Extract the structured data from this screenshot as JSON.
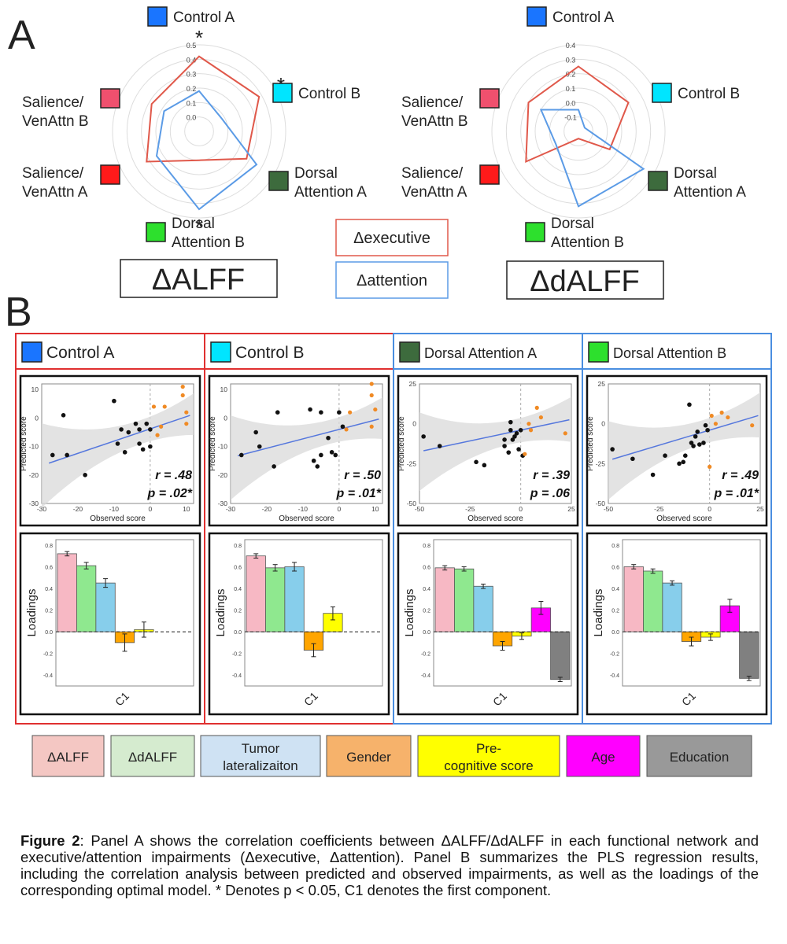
{
  "panel_labels": {
    "a": "A",
    "b": "B"
  },
  "radar_legend": {
    "executive": "Δexecutive",
    "attention": "Δattention"
  },
  "radar_titles": [
    "ΔALFF",
    "ΔdALFF"
  ],
  "network_labels": {
    "control_a": "Control A",
    "control_b": "Control B",
    "dorsal_a": [
      "Dorsal",
      "Attention A"
    ],
    "dorsal_b": [
      "Dorsal",
      "Attention B"
    ],
    "salience_a": [
      "Salience/",
      "VenAttn A"
    ],
    "salience_b": [
      "Salience/",
      "VenAttn B"
    ]
  },
  "colors": {
    "control_a": "#1a75ff",
    "control_b": "#00e5ff",
    "dorsal_a": "#3d6b3d",
    "dorsal_b": "#2de02d",
    "salience_a": "#ff1a1a",
    "salience_b": "#f0506e",
    "executive": "#e0584a",
    "attention": "#5b9be6",
    "red_frame": "#e03030",
    "blue_frame": "#4a8ee0"
  },
  "sig_marker": "*",
  "scatter_text": {
    "xlabel": "Observed score",
    "ylabel": "Predicted score"
  },
  "bar_text": {
    "ylabel": "Loadings",
    "component": "C1"
  },
  "bar_legend": [
    {
      "label": "ΔALFF",
      "color": "#f4c7c3"
    },
    {
      "label": "ΔdALFF",
      "color": "#d5ebcf"
    },
    {
      "label": "Tumor\nlateralizaiton",
      "color": "#cfe2f3"
    },
    {
      "label": "Gender",
      "color": "#f6b26b"
    },
    {
      "label": "Pre-\ncognitive score",
      "color": "#ffff00"
    },
    {
      "label": "Age",
      "color": "#ff00ff"
    },
    {
      "label": "Education",
      "color": "#999999"
    }
  ],
  "caption": {
    "bold": "Figure 2",
    "text": ": Panel A shows the correlation coefficients between ΔALFF/ΔdALFF in each functional network and executive/attention impairments (Δexecutive, Δattention). Panel B summarizes the PLS regression results, including the correlation analysis between predicted and observed impairments, as well as the loadings of the corresponding optimal model. * Denotes p < 0.05, C1 denotes the first component."
  },
  "chart_data": [
    {
      "type": "radar",
      "title": "ΔALFF",
      "axes": [
        "Control A",
        "Control B",
        "Dorsal Attention A",
        "Dorsal Attention B",
        "Salience/VenAttn A",
        "Salience/VenAttn B"
      ],
      "rlim": [
        -0.1,
        0.5
      ],
      "ticks": [
        "0.0",
        "0.1",
        "0.2",
        "0.3",
        "0.4",
        "0.5"
      ],
      "significant": [
        true,
        true,
        true,
        true,
        false,
        false
      ],
      "series": [
        {
          "name": "Δexecutive",
          "values": [
            0.42,
            0.38,
            0.28,
            0.1,
            0.32,
            0.28
          ]
        },
        {
          "name": "Δattention",
          "values": [
            0.18,
            0.08,
            0.36,
            0.44,
            0.24,
            0.18
          ]
        }
      ]
    },
    {
      "type": "radar",
      "title": "ΔdALFF",
      "axes": [
        "Control A",
        "Control B",
        "Dorsal Attention A",
        "Dorsal Attention B",
        "Salience/VenAttn A",
        "Salience/VenAttn B"
      ],
      "rlim": [
        -0.2,
        0.4
      ],
      "ticks": [
        "-0.1",
        "0.0",
        "0.1",
        "0.2",
        "0.3",
        "0.4"
      ],
      "significant": [
        false,
        false,
        false,
        false,
        false,
        false
      ],
      "series": [
        {
          "name": "Δexecutive",
          "values": [
            0.25,
            0.2,
            0.05,
            -0.15,
            0.22,
            0.2
          ]
        },
        {
          "name": "Δattention",
          "values": [
            -0.05,
            -0.15,
            0.32,
            0.32,
            -0.02,
            0.1
          ]
        }
      ]
    },
    {
      "type": "scatter",
      "network": "Control A",
      "xlim": [
        -30,
        12
      ],
      "ylim": [
        -30,
        12
      ],
      "xticks": [
        -30,
        -20,
        -10,
        0,
        10
      ],
      "yticks": [
        10,
        0,
        -10,
        -20,
        -30
      ],
      "points": [
        [
          -27,
          -13
        ],
        [
          -24,
          1
        ],
        [
          -23,
          -13
        ],
        [
          -18,
          -20
        ],
        [
          -10,
          6
        ],
        [
          -9,
          -9
        ],
        [
          -8,
          -4
        ],
        [
          -7,
          -12
        ],
        [
          -6,
          -5
        ],
        [
          -4,
          -2
        ],
        [
          -3,
          -9
        ],
        [
          -3,
          -4
        ],
        [
          -2,
          -11
        ],
        [
          -1,
          -2
        ],
        [
          0,
          -4
        ],
        [
          0,
          -10
        ]
      ],
      "highlight_points": [
        [
          1,
          4
        ],
        [
          2,
          -6
        ],
        [
          3,
          -3
        ],
        [
          4,
          4
        ],
        [
          9,
          11
        ],
        [
          9,
          8
        ],
        [
          10,
          -2
        ],
        [
          10,
          2
        ]
      ],
      "fit": {
        "intercept": -3.8,
        "slope": 0.43
      },
      "r": ".48",
      "p": ".02*"
    },
    {
      "type": "scatter",
      "network": "Control B",
      "xlim": [
        -30,
        12
      ],
      "ylim": [
        -30,
        12
      ],
      "xticks": [
        -30,
        -20,
        -10,
        0,
        10
      ],
      "yticks": [
        10,
        0,
        -10,
        -20,
        -30
      ],
      "points": [
        [
          -27,
          -13
        ],
        [
          -23,
          -5
        ],
        [
          -22,
          -10
        ],
        [
          -18,
          -17
        ],
        [
          -17,
          2
        ],
        [
          -8,
          3
        ],
        [
          -7,
          -15
        ],
        [
          -6,
          -17
        ],
        [
          -5,
          2
        ],
        [
          -5,
          -13
        ],
        [
          -3,
          -7
        ],
        [
          -2,
          -12
        ],
        [
          -1,
          -13
        ],
        [
          0,
          2
        ],
        [
          1,
          -3
        ]
      ],
      "highlight_points": [
        [
          2,
          -4
        ],
        [
          3,
          2
        ],
        [
          9,
          12
        ],
        [
          9,
          8
        ],
        [
          9,
          -3
        ],
        [
          10,
          3
        ]
      ],
      "fit": {
        "intercept": -4,
        "slope": 0.33
      },
      "r": ".50",
      "p": ".01*"
    },
    {
      "type": "scatter",
      "network": "Dorsal Attention A",
      "xlim": [
        -50,
        25
      ],
      "ylim": [
        -50,
        25
      ],
      "xticks": [
        -50,
        -25,
        0,
        25
      ],
      "yticks": [
        25,
        0,
        -25,
        -50
      ],
      "points": [
        [
          -48,
          -8
        ],
        [
          -40,
          -14
        ],
        [
          -22,
          -24
        ],
        [
          -18,
          -26
        ],
        [
          -8,
          -14
        ],
        [
          -8,
          -10
        ],
        [
          -6,
          -18
        ],
        [
          -5,
          -4
        ],
        [
          -5,
          1
        ],
        [
          -4,
          -10
        ],
        [
          -3,
          -8
        ],
        [
          -2,
          -6
        ],
        [
          -1,
          -16
        ],
        [
          0,
          -4
        ],
        [
          1,
          -20
        ]
      ],
      "highlight_points": [
        [
          2,
          -19
        ],
        [
          4,
          0
        ],
        [
          5,
          -4
        ],
        [
          8,
          10
        ],
        [
          10,
          4
        ],
        [
          22,
          -6
        ]
      ],
      "fit": {
        "intercept": -4,
        "slope": 0.27
      },
      "r": ".39",
      "p": ".06"
    },
    {
      "type": "scatter",
      "network": "Dorsal Attention B",
      "xlim": [
        -50,
        25
      ],
      "ylim": [
        -50,
        25
      ],
      "xticks": [
        -50,
        -25,
        0,
        25
      ],
      "yticks": [
        25,
        0,
        -25,
        -50
      ],
      "points": [
        [
          -48,
          -16
        ],
        [
          -38,
          -22
        ],
        [
          -28,
          -32
        ],
        [
          -22,
          -20
        ],
        [
          -15,
          -25
        ],
        [
          -13,
          -24
        ],
        [
          -12,
          -20
        ],
        [
          -10,
          12
        ],
        [
          -9,
          -12
        ],
        [
          -8,
          -14
        ],
        [
          -7,
          -8
        ],
        [
          -6,
          -5
        ],
        [
          -5,
          -13
        ],
        [
          -3,
          -12
        ],
        [
          -2,
          -1
        ],
        [
          -1,
          -4
        ]
      ],
      "highlight_points": [
        [
          0,
          -27
        ],
        [
          1,
          5
        ],
        [
          3,
          0
        ],
        [
          6,
          7
        ],
        [
          9,
          4
        ],
        [
          21,
          -1
        ]
      ],
      "fit": {
        "intercept": -4,
        "slope": 0.38
      },
      "r": ".49",
      "p": ".01*"
    },
    {
      "type": "bar",
      "network": "Control A",
      "ylim": [
        -0.5,
        0.85
      ],
      "yticks": [
        0.8,
        0.6,
        0.4,
        0.2,
        0.0,
        -0.2,
        -0.4
      ],
      "categories": [
        "ΔALFF",
        "ΔdALFF",
        "Tumor lateralizaiton",
        "Gender",
        "Pre-cognitive score"
      ],
      "values": [
        0.72,
        0.61,
        0.45,
        -0.1,
        0.02
      ],
      "errors": [
        0.02,
        0.03,
        0.04,
        0.08,
        0.07
      ]
    },
    {
      "type": "bar",
      "network": "Control B",
      "ylim": [
        -0.5,
        0.85
      ],
      "yticks": [
        0.8,
        0.6,
        0.4,
        0.2,
        0.0,
        -0.2,
        -0.4
      ],
      "categories": [
        "ΔALFF",
        "ΔdALFF",
        "Tumor lateralizaiton",
        "Gender",
        "Pre-cognitive score"
      ],
      "values": [
        0.7,
        0.59,
        0.6,
        -0.17,
        0.17
      ],
      "errors": [
        0.02,
        0.03,
        0.04,
        0.06,
        0.06
      ]
    },
    {
      "type": "bar",
      "network": "Dorsal Attention A",
      "ylim": [
        -0.5,
        0.85
      ],
      "yticks": [
        0.8,
        0.6,
        0.4,
        0.2,
        0.0,
        -0.2,
        -0.4
      ],
      "categories": [
        "ΔALFF",
        "ΔdALFF",
        "Tumor lateralizaiton",
        "Gender",
        "Pre-cognitive score",
        "Age",
        "Education"
      ],
      "values": [
        0.59,
        0.58,
        0.42,
        -0.13,
        -0.04,
        0.22,
        -0.44
      ],
      "errors": [
        0.02,
        0.02,
        0.02,
        0.04,
        0.03,
        0.06,
        0.02
      ]
    },
    {
      "type": "bar",
      "network": "Dorsal Attention B",
      "ylim": [
        -0.5,
        0.85
      ],
      "yticks": [
        0.8,
        0.6,
        0.4,
        0.2,
        0.0,
        -0.2,
        -0.4
      ],
      "categories": [
        "ΔALFF",
        "ΔdALFF",
        "Tumor lateralizaiton",
        "Gender",
        "Pre-cognitive score",
        "Age",
        "Education"
      ],
      "values": [
        0.6,
        0.56,
        0.45,
        -0.09,
        -0.05,
        0.24,
        -0.43
      ],
      "errors": [
        0.02,
        0.02,
        0.02,
        0.04,
        0.03,
        0.06,
        0.02
      ]
    }
  ]
}
